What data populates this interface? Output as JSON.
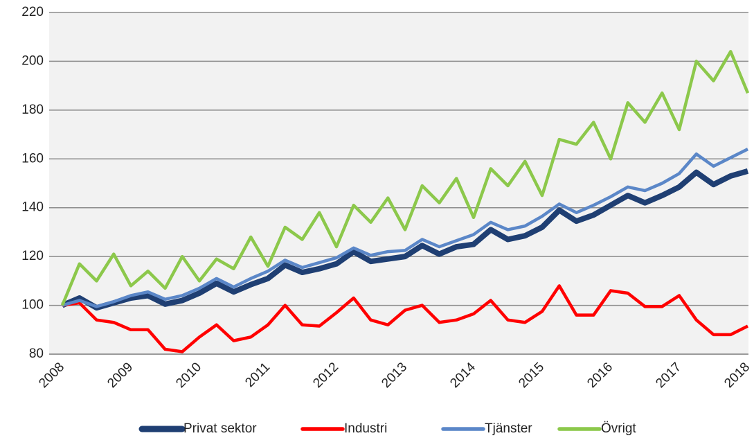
{
  "chart_data": {
    "type": "line",
    "categories": [
      "2008",
      null,
      null,
      null,
      "2009",
      null,
      null,
      null,
      "2010",
      null,
      null,
      null,
      "2011",
      null,
      null,
      null,
      "2012",
      null,
      null,
      null,
      "2013",
      null,
      null,
      null,
      "2014",
      null,
      null,
      null,
      "2015",
      null,
      null,
      null,
      "2016",
      null,
      null,
      null,
      "2017",
      null,
      null,
      null,
      "2018"
    ],
    "series": [
      {
        "name": "Privat sektor",
        "color": "#1f3f73",
        "values": [
          100,
          103,
          99,
          101,
          103,
          104,
          100.5,
          102,
          105,
          109,
          105.5,
          108.5,
          111,
          116.5,
          113.5,
          115,
          117,
          122,
          118,
          119,
          120,
          124.5,
          121,
          124,
          125,
          131,
          127,
          128.5,
          132,
          139,
          134.5,
          137,
          141,
          145,
          142,
          145,
          148.5,
          154.5,
          149.5,
          153,
          155
        ]
      },
      {
        "name": "Industri",
        "color": "#ff0000",
        "values": [
          100,
          101,
          94,
          93,
          90,
          90,
          82,
          81,
          87,
          92,
          85.5,
          87,
          92,
          100,
          92,
          91.5,
          97,
          103,
          94,
          92,
          98,
          100,
          93,
          94,
          96.5,
          102,
          94,
          93,
          97.5,
          108,
          96,
          96,
          106,
          105,
          99.5,
          99.5,
          104,
          94,
          88,
          88,
          91.5
        ]
      },
      {
        "name": "Tjänster",
        "color": "#5b87c8",
        "values": [
          100,
          102,
          99.5,
          101.5,
          104,
          105.5,
          102.5,
          104,
          107,
          111,
          107.5,
          111,
          114,
          118.5,
          115.5,
          117.5,
          119.5,
          123.5,
          120.5,
          122,
          122.5,
          127,
          124,
          126.5,
          129,
          134,
          131,
          132.5,
          136.5,
          141.5,
          138,
          141,
          144.5,
          148.5,
          147,
          150,
          154,
          162,
          157,
          160.5,
          164
        ]
      },
      {
        "name": "Övrigt",
        "color": "#8cc84b",
        "values": [
          100,
          117,
          110,
          121,
          108,
          114,
          107,
          120,
          110,
          119,
          115,
          128,
          116,
          132,
          127,
          138,
          124,
          141,
          134,
          144,
          131,
          149,
          142,
          152,
          136,
          156,
          149,
          159,
          145,
          168,
          166,
          175,
          160,
          183,
          175,
          187,
          172,
          200,
          192,
          204,
          187
        ]
      }
    ],
    "ylim": [
      80,
      220
    ],
    "yticks": [
      80,
      100,
      120,
      140,
      160,
      180,
      200,
      220
    ],
    "grid": true,
    "legend": "bottom"
  }
}
